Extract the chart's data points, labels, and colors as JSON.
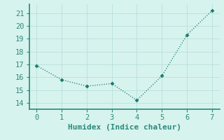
{
  "x": [
    0,
    1,
    2,
    3,
    4,
    5,
    6,
    7
  ],
  "y": [
    16.9,
    15.8,
    15.3,
    15.5,
    14.2,
    16.1,
    19.3,
    21.2
  ],
  "line_color": "#1a7a6e",
  "marker": "D",
  "marker_size": 2.5,
  "background_color": "#d7f3ee",
  "grid_color": "#b8e0da",
  "xlabel": "Humidex (Indice chaleur)",
  "xlim": [
    -0.3,
    7.3
  ],
  "ylim": [
    13.5,
    21.7
  ],
  "yticks": [
    14,
    15,
    16,
    17,
    18,
    19,
    20,
    21
  ],
  "xticks": [
    0,
    1,
    2,
    3,
    4,
    5,
    6,
    7
  ],
  "label_fontsize": 8,
  "tick_fontsize": 7.5,
  "spine_color": "#2a8a7a",
  "axis_linewidth": 1.2
}
